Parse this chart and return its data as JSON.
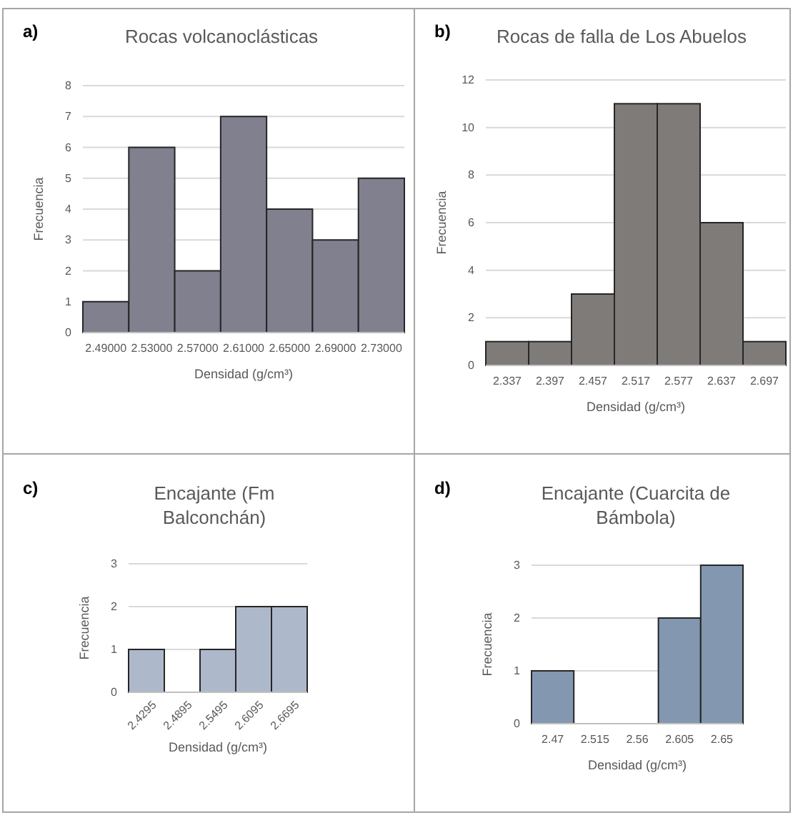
{
  "chart_data": [
    {
      "type": "bar",
      "title": "Rocas volcanoclásticas",
      "annotations": [
        "a)"
      ],
      "xlabel": "Densidad (g/cm³)",
      "ylabel": "Frecuencia",
      "categories": [
        "2.49000",
        "2.53000",
        "2.57000",
        "2.61000",
        "2.65000",
        "2.69000",
        "2.73000"
      ],
      "values": [
        1,
        6,
        2,
        7,
        4,
        3,
        5
      ],
      "color": "#80808f",
      "ylim": [
        0,
        8
      ],
      "yticks": [
        0,
        1,
        2,
        3,
        4,
        5,
        6,
        7,
        8
      ],
      "grid": "y"
    },
    {
      "type": "bar",
      "title": "Rocas de falla de Los Abuelos",
      "annotations": [
        "b)"
      ],
      "xlabel": "Densidad (g/cm³)",
      "ylabel": "Frecuencia",
      "categories": [
        "2.337",
        "2.397",
        "2.457",
        "2.517",
        "2.577",
        "2.637",
        "2.697"
      ],
      "values": [
        1,
        1,
        3,
        11,
        11,
        6,
        1
      ],
      "color": "#7f7b79",
      "ylim": [
        0,
        12
      ],
      "yticks": [
        0,
        2,
        4,
        6,
        8,
        10,
        12
      ],
      "grid": "y"
    },
    {
      "type": "bar",
      "title": "Encajante (Fm Balconchán)",
      "annotations": [
        "c)"
      ],
      "xlabel": "Densidad (g/cm³)",
      "ylabel": "Frecuencia",
      "categories": [
        "2.4295",
        "2.4895",
        "2.5495",
        "2.6095",
        "2.6695"
      ],
      "values": [
        1,
        0,
        1,
        2,
        2
      ],
      "color": "#adb9ca",
      "ylim": [
        0,
        3
      ],
      "yticks": [
        0,
        1,
        2,
        3
      ],
      "grid": "y"
    },
    {
      "type": "bar",
      "title": "Encajante (Cuarcita de Bámbola)",
      "annotations": [
        "d)"
      ],
      "xlabel": "Densidad (g/cm³)",
      "ylabel": "Frecuencia",
      "categories": [
        "2.47",
        "2.515",
        "2.56",
        "2.605",
        "2.65"
      ],
      "values": [
        1,
        0,
        0,
        2,
        3
      ],
      "color": "#8497b0",
      "ylim": [
        0,
        3
      ],
      "yticks": [
        0,
        1,
        2,
        3
      ],
      "grid": "y"
    }
  ]
}
